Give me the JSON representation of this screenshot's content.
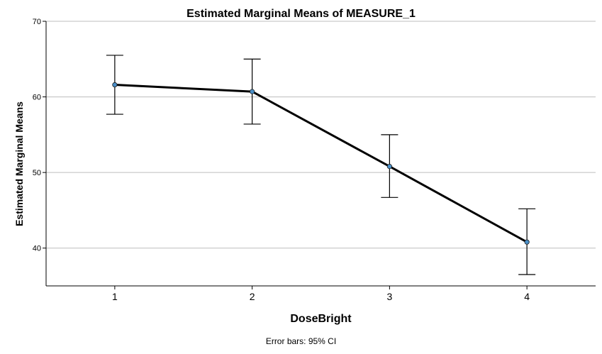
{
  "chart_data": {
    "type": "line",
    "title": "Estimated Marginal Means of MEASURE_1",
    "xlabel": "DoseBright",
    "ylabel": "Estimated Marginal Means",
    "footnote": "Error bars: 95% CI",
    "categories": [
      "1",
      "2",
      "3",
      "4"
    ],
    "series": [
      {
        "values": [
          61.6,
          60.7,
          50.8,
          40.8
        ],
        "ci_lower": [
          57.7,
          56.4,
          46.7,
          36.5
        ],
        "ci_upper": [
          65.5,
          65.0,
          55.0,
          45.2
        ]
      }
    ],
    "ylim": [
      35,
      70
    ],
    "yticks": [
      40,
      50,
      60,
      70
    ],
    "grid": true,
    "colors": {
      "line": "#000000",
      "marker": "#4a8fc8",
      "grid": "#bdbdbd",
      "axis": "#000000"
    }
  }
}
